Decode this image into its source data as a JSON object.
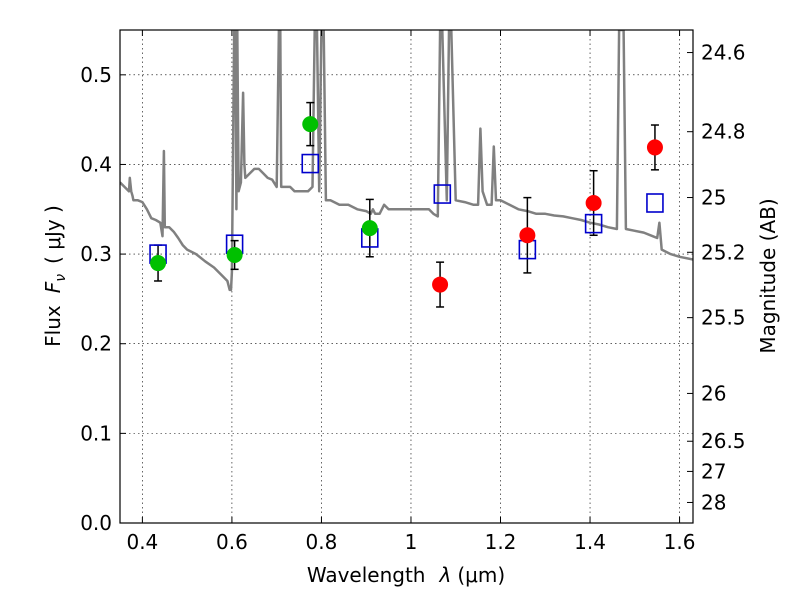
{
  "chart_data": {
    "type": "scatter",
    "xlabel_text": "Wavelength",
    "xlabel_symbol": "λ",
    "xlabel_unit": "(μm)",
    "ylabel_text": "Flux",
    "ylabel_symbol": "F",
    "ylabel_symbol_sub": "ν",
    "ylabel_unit": "( μJy )",
    "y2label": "Magnitude (AB)",
    "xlim": [
      0.35,
      1.63
    ],
    "ylim": [
      0.0,
      0.55
    ],
    "x_ticks": [
      0.4,
      0.6,
      0.8,
      1.0,
      1.2,
      1.4,
      1.6
    ],
    "x_tick_labels": [
      "0.4",
      "0.6",
      "0.8",
      "1",
      "1.2",
      "1.4",
      "1.6"
    ],
    "y_ticks": [
      0.0,
      0.1,
      0.2,
      0.3,
      0.4,
      0.5
    ],
    "y_tick_labels": [
      "0.0",
      "0.1",
      "0.2",
      "0.3",
      "0.4",
      "0.5"
    ],
    "y2_ticks": [
      24.6,
      24.8,
      25,
      25.2,
      25.5,
      26,
      26.5,
      27,
      28
    ],
    "y2_tick_labels": [
      "24.6",
      "24.8",
      "25",
      "25.2",
      "25.5",
      "26",
      "26.5",
      "27",
      "28"
    ],
    "grid": true,
    "colors": {
      "model": "#808080",
      "green": "#00c000",
      "red": "#ff0000",
      "square": "#0000cc",
      "errorbar": "#000000"
    },
    "series": [
      {
        "marker": "circle",
        "color": "#00c000",
        "points": [
          {
            "x": 0.435,
            "y": 0.29,
            "err": 0.02
          },
          {
            "x": 0.606,
            "y": 0.299,
            "err": 0.016
          },
          {
            "x": 0.775,
            "y": 0.445,
            "err": 0.024
          },
          {
            "x": 0.908,
            "y": 0.329,
            "err": 0.032
          }
        ]
      },
      {
        "marker": "circle",
        "color": "#ff0000",
        "points": [
          {
            "x": 1.065,
            "y": 0.266,
            "err": 0.025
          },
          {
            "x": 1.26,
            "y": 0.321,
            "err": 0.042
          },
          {
            "x": 1.408,
            "y": 0.357,
            "err": 0.036
          },
          {
            "x": 1.545,
            "y": 0.419,
            "err": 0.025
          }
        ]
      },
      {
        "marker": "square",
        "color": "#0000cc",
        "points": [
          {
            "x": 0.435,
            "y": 0.3
          },
          {
            "x": 0.606,
            "y": 0.311
          },
          {
            "x": 0.775,
            "y": 0.401
          },
          {
            "x": 0.908,
            "y": 0.318
          },
          {
            "x": 1.07,
            "y": 0.367
          },
          {
            "x": 1.26,
            "y": 0.305
          },
          {
            "x": 1.408,
            "y": 0.334
          },
          {
            "x": 1.545,
            "y": 0.357
          }
        ]
      }
    ],
    "model_spectrum": {
      "color": "#808080",
      "x": [
        0.35,
        0.36,
        0.37,
        0.372,
        0.375,
        0.378,
        0.38,
        0.39,
        0.4,
        0.41,
        0.42,
        0.43,
        0.44,
        0.445,
        0.448,
        0.45,
        0.46,
        0.47,
        0.48,
        0.49,
        0.5,
        0.52,
        0.54,
        0.56,
        0.57,
        0.58,
        0.59,
        0.595,
        0.598,
        0.6,
        0.605,
        0.608,
        0.61,
        0.612,
        0.615,
        0.62,
        0.625,
        0.628,
        0.63,
        0.64,
        0.65,
        0.66,
        0.67,
        0.68,
        0.69,
        0.7,
        0.705,
        0.708,
        0.71,
        0.72,
        0.73,
        0.74,
        0.75,
        0.76,
        0.77,
        0.78,
        0.785,
        0.79,
        0.795,
        0.8,
        0.805,
        0.81,
        0.82,
        0.84,
        0.86,
        0.88,
        0.9,
        0.91,
        0.915,
        0.92,
        0.93,
        0.94,
        0.95,
        0.96,
        0.98,
        1.0,
        1.02,
        1.04,
        1.05,
        1.06,
        1.065,
        1.07,
        1.08,
        1.085,
        1.09,
        1.1,
        1.12,
        1.14,
        1.15,
        1.155,
        1.16,
        1.17,
        1.18,
        1.185,
        1.19,
        1.2,
        1.22,
        1.24,
        1.26,
        1.28,
        1.3,
        1.32,
        1.34,
        1.36,
        1.38,
        1.4,
        1.42,
        1.44,
        1.46,
        1.465,
        1.47,
        1.475,
        1.48,
        1.5,
        1.52,
        1.54,
        1.55,
        1.555,
        1.56,
        1.58,
        1.6,
        1.63
      ],
      "y": [
        0.38,
        0.375,
        0.37,
        0.385,
        0.37,
        0.365,
        0.36,
        0.36,
        0.358,
        0.35,
        0.34,
        0.338,
        0.335,
        0.32,
        0.415,
        0.33,
        0.33,
        0.325,
        0.318,
        0.31,
        0.305,
        0.3,
        0.292,
        0.285,
        0.28,
        0.275,
        0.27,
        0.26,
        0.26,
        0.28,
        0.55,
        0.55,
        0.35,
        0.55,
        0.37,
        0.38,
        0.48,
        0.4,
        0.385,
        0.39,
        0.395,
        0.395,
        0.39,
        0.385,
        0.383,
        0.375,
        0.55,
        0.55,
        0.375,
        0.375,
        0.375,
        0.37,
        0.37,
        0.37,
        0.37,
        0.375,
        0.55,
        0.55,
        0.37,
        0.55,
        0.55,
        0.36,
        0.36,
        0.355,
        0.355,
        0.35,
        0.348,
        0.345,
        0.35,
        0.345,
        0.345,
        0.355,
        0.35,
        0.35,
        0.35,
        0.35,
        0.35,
        0.35,
        0.345,
        0.342,
        0.55,
        0.55,
        0.36,
        0.55,
        0.55,
        0.36,
        0.358,
        0.355,
        0.355,
        0.44,
        0.37,
        0.355,
        0.355,
        0.42,
        0.36,
        0.36,
        0.355,
        0.35,
        0.348,
        0.345,
        0.345,
        0.343,
        0.342,
        0.34,
        0.338,
        0.335,
        0.333,
        0.33,
        0.328,
        0.55,
        0.55,
        0.55,
        0.328,
        0.326,
        0.324,
        0.32,
        0.318,
        0.335,
        0.305,
        0.3,
        0.297,
        0.294
      ]
    }
  }
}
